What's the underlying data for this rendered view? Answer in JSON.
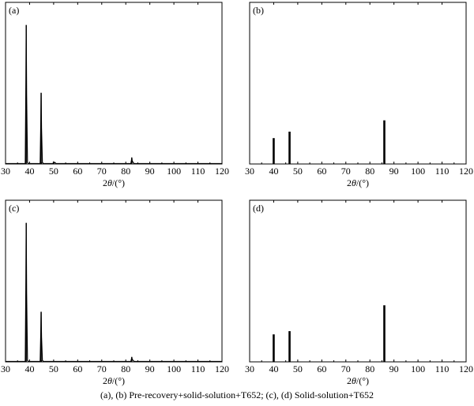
{
  "caption": "(a), (b) Pre-recovery+solid-solution+T652; (c), (d) Solid-solution+T652",
  "chart_data": [
    {
      "type": "line",
      "panel_label": "(a)",
      "xlabel_prefix": "2",
      "xlabel_var": "θ",
      "xlabel_unit": "/(°)",
      "xlim": [
        30,
        120
      ],
      "ylim": [
        0,
        100
      ],
      "xticks": [
        "30",
        "40",
        "50",
        "60",
        "70",
        "80",
        "90",
        "100",
        "110",
        "120"
      ],
      "peaks": [
        {
          "x": 38.6,
          "y": 86
        },
        {
          "x": 44.8,
          "y": 44
        },
        {
          "x": 50.0,
          "y": 1.2
        },
        {
          "x": 82.5,
          "y": 4
        }
      ]
    },
    {
      "type": "bar",
      "panel_label": "(b)",
      "xlabel_prefix": "2",
      "xlabel_var": "θ",
      "xlabel_unit": "/(°)",
      "xlim": [
        30,
        120
      ],
      "ylim": [
        0,
        100
      ],
      "xticks": [
        "30",
        "40",
        "50",
        "60",
        "70",
        "80",
        "90",
        "100",
        "110",
        "120"
      ],
      "peaks": [
        {
          "x": 40.0,
          "y": 16
        },
        {
          "x": 46.6,
          "y": 20
        },
        {
          "x": 86.0,
          "y": 27
        }
      ]
    },
    {
      "type": "line",
      "panel_label": "(c)",
      "xlabel_prefix": "2",
      "xlabel_var": "θ",
      "xlabel_unit": "/(°)",
      "xlim": [
        30,
        120
      ],
      "ylim": [
        0,
        100
      ],
      "xticks": [
        "30",
        "40",
        "50",
        "60",
        "70",
        "80",
        "90",
        "100",
        "110",
        "120"
      ],
      "peaks": [
        {
          "x": 38.6,
          "y": 86
        },
        {
          "x": 44.8,
          "y": 31
        },
        {
          "x": 82.5,
          "y": 3
        }
      ]
    },
    {
      "type": "bar",
      "panel_label": "(d)",
      "xlabel_prefix": "2",
      "xlabel_var": "θ",
      "xlabel_unit": "/(°)",
      "xlim": [
        30,
        120
      ],
      "ylim": [
        0,
        100
      ],
      "xticks": [
        "30",
        "40",
        "50",
        "60",
        "70",
        "80",
        "90",
        "100",
        "110",
        "120"
      ],
      "peaks": [
        {
          "x": 40.0,
          "y": 17
        },
        {
          "x": 46.6,
          "y": 19
        },
        {
          "x": 86.0,
          "y": 35
        }
      ]
    }
  ]
}
